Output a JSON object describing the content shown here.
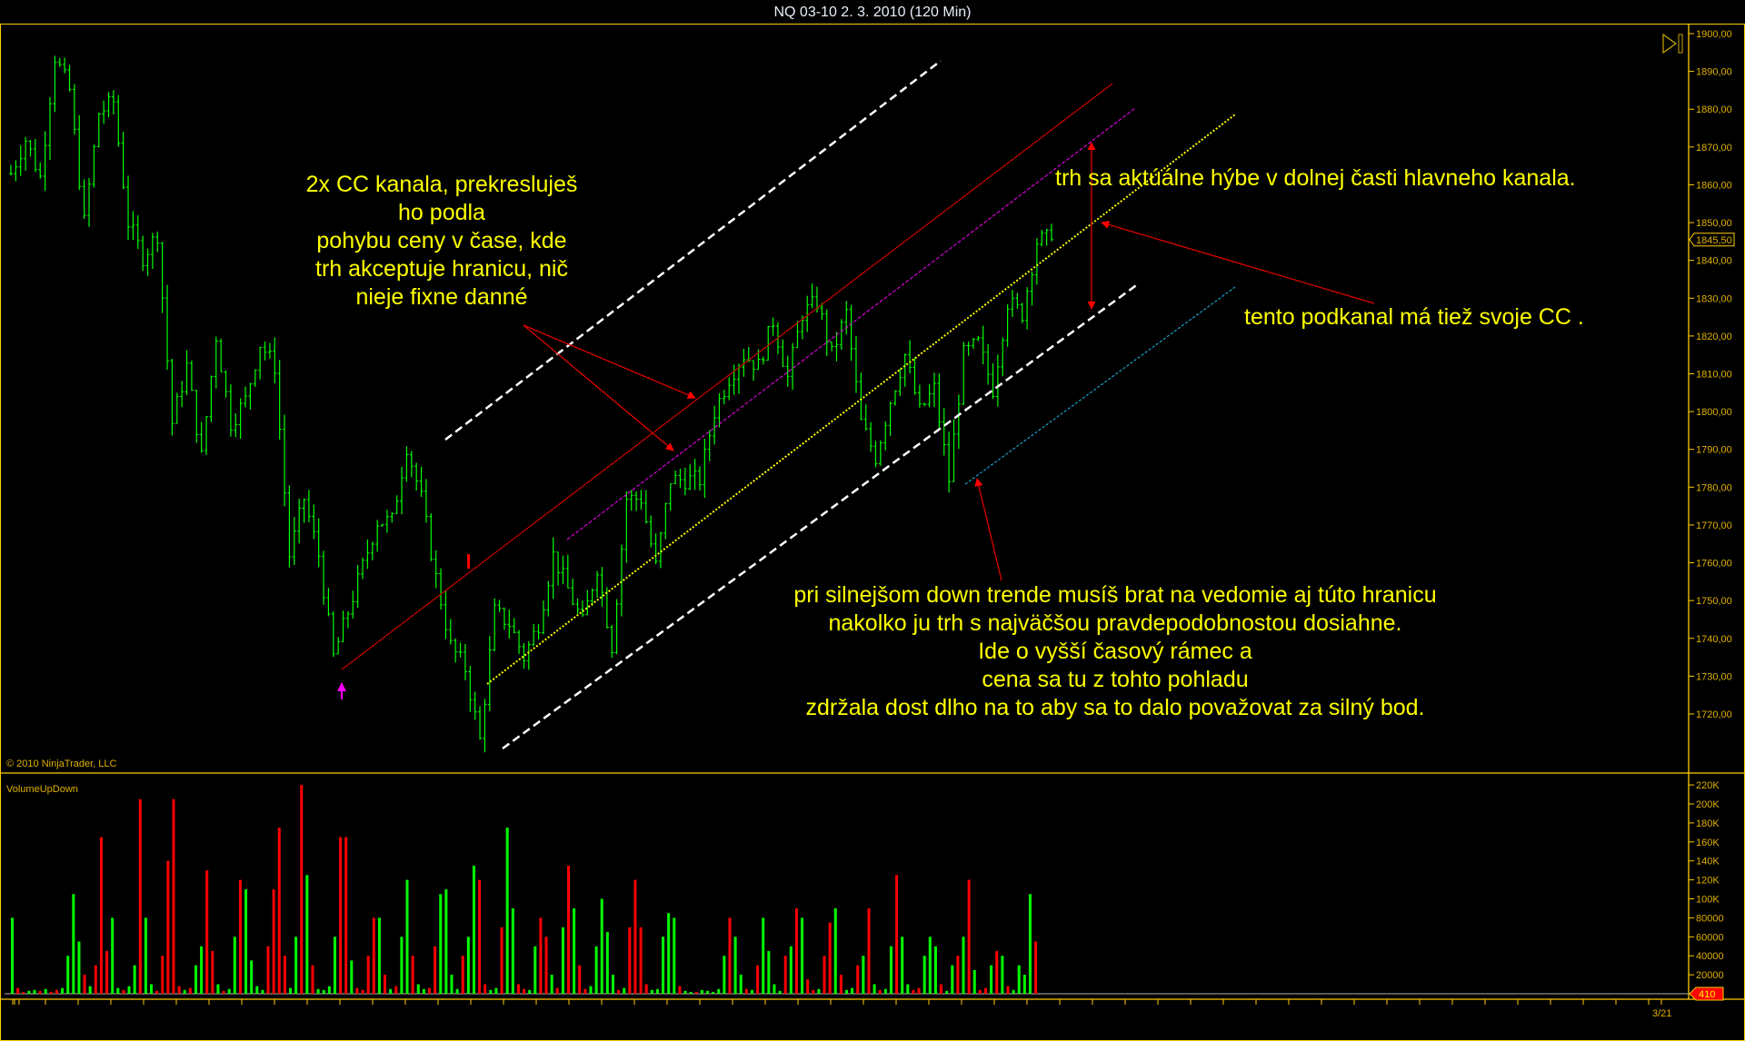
{
  "window": {
    "title": "NQ 03-10  2. 3. 2010 (120 Min)"
  },
  "copyright": "© 2010 NinjaTrader, LLC",
  "indicator_label": "VolumeUpDown",
  "colors": {
    "frame": "#ffcc00",
    "up": "#00ff00",
    "down": "#ff0000",
    "text": "#ffff00"
  },
  "annotations": {
    "block1": [
      "2x CC kanala, prekresluješ",
      "ho podla",
      "pohybu ceny v čase, kde",
      "trh akceptuje hranicu, nič",
      "nieje fixne danné"
    ],
    "block2": "trh sa aktúálne hýbe v dolnej časti hlavneho kanala.",
    "block3": "tento podkanal má tiež svoje CC .",
    "block4": [
      "pri silnejšom down trende musíš brat na vedomie aj túto hranicu",
      "nakolko ju trh s najväčšou pravdepodobnostou dosiahne.",
      "Ide o vyšší časový rámec a",
      "cena sa tu z tohto pohladu",
      "zdržala dost dlho na to aby sa to dalo považovat za silný bod."
    ]
  },
  "chart_data": [
    {
      "type": "ohlc",
      "instrument": "NQ 03-10",
      "interval": "120 Min",
      "ylim": [
        1712,
        1902
      ],
      "yticks": [
        "1900,00",
        "1890,00",
        "1880,00",
        "1870,00",
        "1860,00",
        "1850,00",
        "1840,00",
        "1830,00",
        "1820,00",
        "1810,00",
        "1800,00",
        "1790,00",
        "1780,00",
        "1770,00",
        "1760,00",
        "1750,00",
        "1740,00",
        "1730,00",
        "1720,00"
      ],
      "last_price": "1845,50",
      "close_path": [
        1863,
        1872,
        1862,
        1894,
        1885,
        1850,
        1879,
        1882,
        1850,
        1841,
        1847,
        1797,
        1812,
        1788,
        1820,
        1797,
        1803,
        1818,
        1812,
        1762,
        1777,
        1762,
        1735,
        1747,
        1759,
        1771,
        1771,
        1791,
        1777,
        1756,
        1738,
        1732,
        1713,
        1747,
        1744,
        1735,
        1744,
        1762,
        1753,
        1744,
        1759,
        1738,
        1777,
        1777,
        1759,
        1782,
        1782,
        1782,
        1800,
        1809,
        1815,
        1812,
        1824,
        1809,
        1826,
        1829,
        1815,
        1826,
        1797,
        1788,
        1803,
        1815,
        1800,
        1806,
        1782,
        1815,
        1818,
        1806,
        1829,
        1826,
        1845,
        1846
      ],
      "grid": false
    },
    {
      "type": "bar",
      "name": "VolumeUpDown",
      "yticks": [
        "220K",
        "200K",
        "180K",
        "160K",
        "140K",
        "120K",
        "100K",
        "80000",
        "60000",
        "40000",
        "20000"
      ],
      "last_value": "410",
      "ylim": [
        0,
        230
      ],
      "unit": "K",
      "volume_k": [
        80,
        6,
        2,
        3,
        4,
        3,
        5,
        2,
        4,
        6,
        40,
        105,
        55,
        20,
        8,
        30,
        165,
        45,
        80,
        6,
        4,
        8,
        30,
        205,
        80,
        10,
        3,
        40,
        140,
        205,
        8,
        4,
        6,
        30,
        50,
        130,
        45,
        10,
        3,
        5,
        60,
        120,
        110,
        35,
        8,
        4,
        50,
        110,
        175,
        40,
        6,
        60,
        220,
        125,
        30,
        5,
        4,
        8,
        60,
        165,
        165,
        35,
        6,
        4,
        40,
        80,
        80,
        20,
        5,
        8,
        60,
        120,
        40,
        10,
        5,
        6,
        50,
        105,
        110,
        20,
        5,
        40,
        60,
        135,
        120,
        10,
        4,
        6,
        70,
        175,
        90,
        10,
        5,
        4,
        50,
        80,
        60,
        20,
        6,
        70,
        135,
        90,
        30,
        5,
        8,
        50,
        100,
        65,
        20,
        4,
        6,
        70,
        120,
        70,
        10,
        4,
        5,
        60,
        85,
        80,
        8,
        3,
        2,
        2,
        4,
        3,
        2,
        5,
        40,
        80,
        60,
        20,
        5,
        4,
        30,
        80,
        45,
        10,
        3,
        40,
        50,
        90,
        80,
        15,
        4,
        5,
        40,
        75,
        90,
        20,
        4,
        6,
        30,
        40,
        90,
        10,
        4,
        5,
        50,
        125,
        60,
        10,
        4,
        6,
        40,
        60,
        50,
        10,
        3,
        30,
        40,
        60,
        120,
        25,
        4,
        6,
        30,
        45,
        40,
        8,
        4,
        30,
        20,
        105,
        55
      ],
      "volume_dir": "udduududduuuududdduuduuduuddddduduudduduuduuuudddduududuuuudduddddududuuduudduuuuduudduuduudduuddudududduuuuududddduuuuuduuduuuuuduududuuuudududdudduduudududuuduudduuuduudududdududuuuudu"
    }
  ],
  "x_axis": {
    "label_visible": "3/21"
  }
}
